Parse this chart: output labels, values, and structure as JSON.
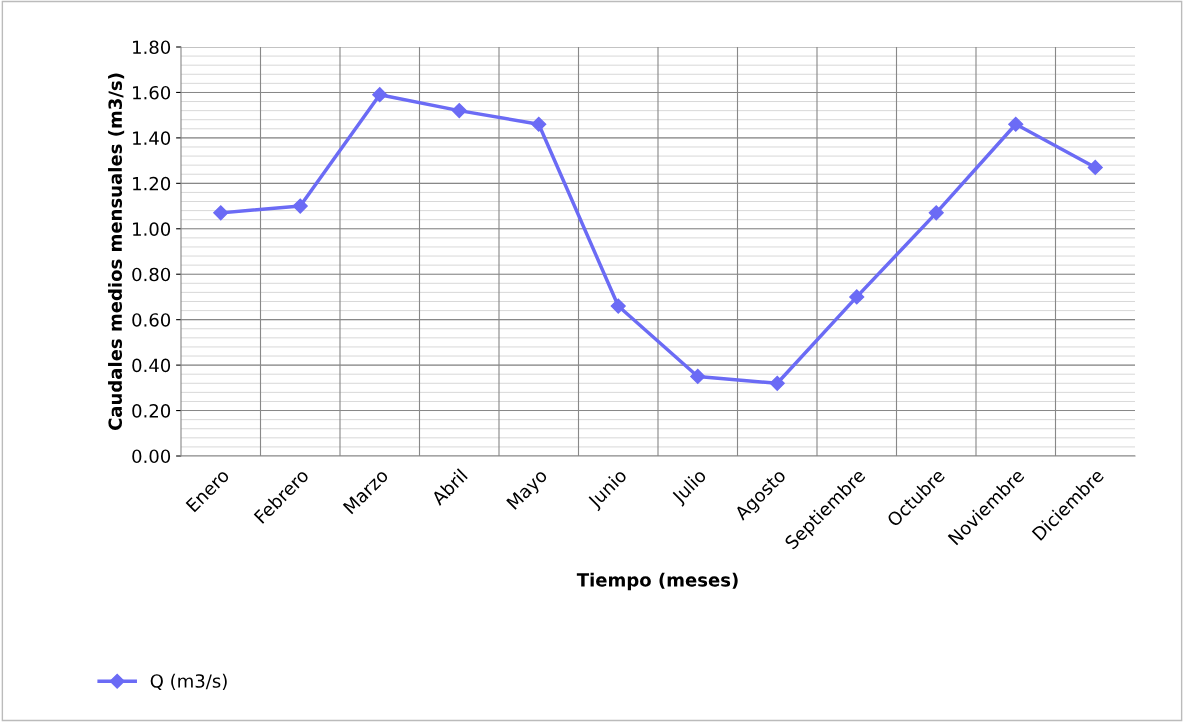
{
  "chart_data": {
    "type": "line",
    "xlabel": "Tiempo (meses)",
    "ylabel": "Caudales medios mensuales (m3/s)",
    "categories": [
      "Enero",
      "Febrero",
      "Marzo",
      "Abril",
      "Mayo",
      "Junio",
      "Julio",
      "Agosto",
      "Septiembre",
      "Octubre",
      "Noviembre",
      "Diciembre"
    ],
    "series": [
      {
        "name": "Q (m3/s)",
        "color": "#6b6bf5",
        "values": [
          1.07,
          1.1,
          1.59,
          1.52,
          1.46,
          0.66,
          0.35,
          0.32,
          0.7,
          1.07,
          1.46,
          1.27
        ]
      }
    ],
    "ylim": [
      0,
      1.8
    ],
    "yticks": [
      {
        "value": 0,
        "label": "0.00"
      },
      {
        "value": 0.2,
        "label": "0.20"
      },
      {
        "value": 0.4,
        "label": "0.40"
      },
      {
        "value": 0.6,
        "label": "0.60"
      },
      {
        "value": 0.8,
        "label": "0.80"
      },
      {
        "value": 1.0,
        "label": "1.00"
      },
      {
        "value": 1.2,
        "label": "1.20"
      },
      {
        "value": 1.4,
        "label": "1.40"
      },
      {
        "value": 1.6,
        "label": "1.60"
      },
      {
        "value": 1.8,
        "label": "1.80"
      }
    ],
    "grid": true,
    "legend": "bottom left",
    "marker": "diamond",
    "line_style": "solid"
  }
}
